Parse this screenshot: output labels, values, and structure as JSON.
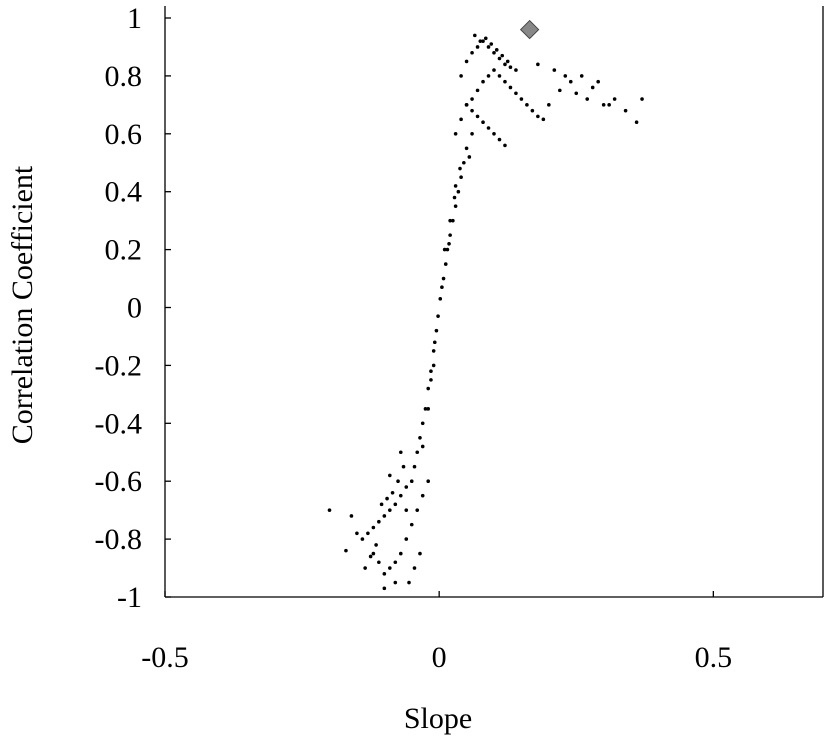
{
  "chart_data": {
    "type": "scatter",
    "x_label": "Slope",
    "y_label": "Correlation Coefficient",
    "xlim": [
      -0.5,
      0.7
    ],
    "ylim": [
      -1,
      1
    ],
    "xticks": [
      -0.5,
      0,
      0.5
    ],
    "yticks": [
      -1,
      -0.8,
      -0.6,
      -0.4,
      -0.2,
      0,
      0.2,
      0.4,
      0.6,
      0.8,
      1
    ],
    "grid": false,
    "series": [
      {
        "color": "#000000",
        "marker": "dot",
        "x": [
          0.002,
          0.005,
          0.008,
          0.012,
          0.015,
          0.02,
          0.025,
          0.03,
          0.035,
          0.04,
          0.01,
          0.02,
          0.03,
          0.045,
          0.05,
          0.06,
          0.018,
          0.028,
          0.038,
          0.055,
          0.03,
          0.04,
          0.05,
          0.06,
          0.07,
          0.08,
          0.09,
          0.1,
          0.11,
          0.12,
          0.13,
          0.14,
          0.15,
          0.16,
          0.17,
          0.18,
          0.19,
          0.2,
          0.22,
          0.24,
          0.04,
          0.05,
          0.06,
          0.07,
          0.08,
          0.09,
          0.1,
          0.11,
          0.12,
          0.13,
          0.14,
          0.05,
          0.06,
          0.07,
          0.08,
          0.09,
          0.1,
          0.11,
          0.12,
          0.065,
          0.075,
          0.085,
          0.095,
          0.105,
          0.115,
          0.125,
          0.21,
          0.23,
          0.25,
          0.27,
          0.28,
          0.3,
          0.32,
          0.34,
          0.36,
          0.37,
          0.26,
          0.29,
          0.31,
          0.18,
          -0.002,
          -0.005,
          -0.01,
          -0.015,
          -0.02,
          -0.025,
          -0.03,
          -0.035,
          -0.04,
          -0.01,
          -0.02,
          -0.045,
          -0.05,
          -0.015,
          -0.03,
          -0.008,
          -0.06,
          -0.07,
          -0.08,
          -0.09,
          -0.1,
          -0.11,
          -0.12,
          -0.13,
          -0.14,
          -0.15,
          -0.05,
          -0.06,
          -0.07,
          -0.08,
          -0.09,
          -0.1,
          -0.11,
          -0.12,
          -0.04,
          -0.03,
          -0.065,
          -0.075,
          -0.085,
          -0.095,
          -0.105,
          -0.115,
          -0.125,
          -0.135,
          -0.055,
          -0.045,
          -0.035,
          -0.02,
          -0.2,
          -0.16,
          -0.17,
          -0.1,
          -0.08,
          -0.06,
          -0.07,
          -0.09
        ],
        "y": [
          0.03,
          0.07,
          0.1,
          0.15,
          0.2,
          0.25,
          0.3,
          0.35,
          0.4,
          0.45,
          0.2,
          0.3,
          0.42,
          0.5,
          0.55,
          0.6,
          0.22,
          0.38,
          0.48,
          0.52,
          0.6,
          0.65,
          0.7,
          0.72,
          0.75,
          0.78,
          0.8,
          0.82,
          0.8,
          0.78,
          0.76,
          0.74,
          0.72,
          0.7,
          0.68,
          0.66,
          0.65,
          0.7,
          0.75,
          0.78,
          0.8,
          0.85,
          0.88,
          0.9,
          0.92,
          0.9,
          0.88,
          0.86,
          0.84,
          0.83,
          0.82,
          0.7,
          0.68,
          0.66,
          0.64,
          0.62,
          0.6,
          0.58,
          0.56,
          0.94,
          0.92,
          0.93,
          0.91,
          0.89,
          0.87,
          0.85,
          0.82,
          0.8,
          0.74,
          0.72,
          0.76,
          0.7,
          0.72,
          0.68,
          0.64,
          0.72,
          0.8,
          0.78,
          0.7,
          0.84,
          -0.03,
          -0.08,
          -0.15,
          -0.22,
          -0.28,
          -0.35,
          -0.4,
          -0.45,
          -0.5,
          -0.2,
          -0.35,
          -0.55,
          -0.6,
          -0.25,
          -0.48,
          -0.12,
          -0.62,
          -0.65,
          -0.68,
          -0.7,
          -0.72,
          -0.74,
          -0.76,
          -0.78,
          -0.8,
          -0.78,
          -0.75,
          -0.8,
          -0.85,
          -0.88,
          -0.9,
          -0.92,
          -0.88,
          -0.85,
          -0.7,
          -0.65,
          -0.55,
          -0.6,
          -0.64,
          -0.66,
          -0.68,
          -0.82,
          -0.86,
          -0.9,
          -0.95,
          -0.9,
          -0.85,
          -0.6,
          -0.7,
          -0.72,
          -0.84,
          -0.97,
          -0.95,
          -0.7,
          -0.5,
          -0.58
        ]
      },
      {
        "color": "#888888",
        "marker": "diamond",
        "x": [
          0.165
        ],
        "y": [
          0.96
        ]
      }
    ]
  }
}
